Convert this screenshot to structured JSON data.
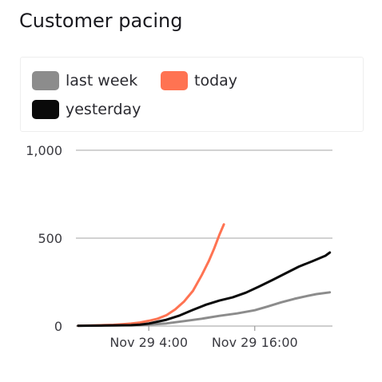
{
  "header": {
    "title": "Customer pacing"
  },
  "legend": {
    "items": [
      {
        "label": "last week",
        "color": "#8c8c8c"
      },
      {
        "label": "today",
        "color": "#ff7352"
      },
      {
        "label": "yesterday",
        "color": "#0a0a0a"
      }
    ]
  },
  "chart_data": {
    "type": "line",
    "title": "Customer pacing",
    "xlabel": "",
    "ylabel": "",
    "legend_position": "top",
    "grid": true,
    "x_unit": "hours since Nov 29 00:00",
    "xlim": [
      -4.25,
      24.8
    ],
    "ylim": [
      0,
      1000
    ],
    "y_ticks": [
      0,
      500,
      1000
    ],
    "y_tick_labels": [
      "0",
      "500",
      "1,000"
    ],
    "x_ticks": [
      4,
      16
    ],
    "x_tick_labels": [
      "Nov 29 4:00",
      "Nov 29 16:00"
    ],
    "series": [
      {
        "name": "last week",
        "color": "#8c8c8c",
        "x": [
          -4.0,
          0.0,
          2.0,
          4.0,
          6.0,
          8.0,
          10.0,
          12.0,
          14.0,
          16.0,
          17.5,
          19.0,
          20.5,
          22.0,
          23.0,
          24.5
        ],
        "y": [
          2,
          3,
          5,
          8,
          15,
          28,
          42,
          58,
          72,
          90,
          112,
          135,
          155,
          172,
          182,
          192
        ]
      },
      {
        "name": "today",
        "color": "#ff7352",
        "x": [
          -4.0,
          -2.0,
          0.0,
          1.0,
          2.0,
          3.0,
          4.0,
          5.0,
          6.0,
          7.0,
          8.0,
          9.0,
          10.0,
          10.8,
          11.4,
          12.0,
          12.5
        ],
        "y": [
          2,
          4,
          7,
          10,
          14,
          20,
          30,
          42,
          62,
          95,
          140,
          200,
          290,
          370,
          440,
          520,
          578
        ]
      },
      {
        "name": "yesterday",
        "color": "#0a0a0a",
        "x": [
          -4.0,
          -1.0,
          2.0,
          3.0,
          4.0,
          6.0,
          7.5,
          9.0,
          10.5,
          12.0,
          13.5,
          15.0,
          16.5,
          18.0,
          19.5,
          21.0,
          22.5,
          24.0,
          24.5
        ],
        "y": [
          2,
          3,
          5,
          8,
          14,
          36,
          60,
          92,
          122,
          145,
          163,
          190,
          225,
          262,
          300,
          338,
          368,
          400,
          418
        ]
      }
    ]
  }
}
